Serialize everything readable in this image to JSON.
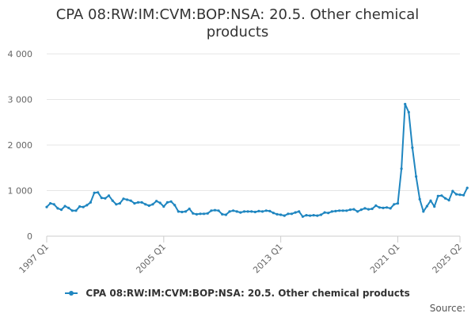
{
  "chart_data": {
    "type": "line",
    "title": "CPA 08:RW:IM:CVM:BOP:NSA: 20.5. Other chemical products",
    "xlabel": "",
    "ylabel": "",
    "ylim": [
      0,
      4000
    ],
    "yticks": [
      {
        "value": 0,
        "label": "0"
      },
      {
        "value": 1000,
        "label": "1 000"
      },
      {
        "value": 2000,
        "label": "2 000"
      },
      {
        "value": 3000,
        "label": "3 000"
      },
      {
        "value": 4000,
        "label": "4 000"
      }
    ],
    "xticks": [
      {
        "value": "1997 Q1",
        "label": "1997 Q1"
      },
      {
        "value": "2005 Q1",
        "label": "2005 Q1"
      },
      {
        "value": "2013 Q1",
        "label": "2013 Q1"
      },
      {
        "value": "2021 Q1",
        "label": "2021 Q1"
      },
      {
        "value": "2025 Q2",
        "label": "2025 Q2"
      }
    ],
    "grid": true,
    "legend_position": "bottom",
    "x_start": "1997 Q1",
    "x_end": "2025 Q2",
    "series": [
      {
        "name": "CPA 08:RW:IM:CVM:BOP:NSA: 20.5. Other chemical products",
        "color": "#1f86c0",
        "values": [
          640,
          720,
          700,
          610,
          580,
          660,
          620,
          560,
          560,
          650,
          640,
          680,
          740,
          950,
          960,
          840,
          830,
          890,
          780,
          700,
          720,
          820,
          800,
          780,
          720,
          740,
          740,
          700,
          670,
          700,
          770,
          730,
          650,
          740,
          760,
          680,
          540,
          530,
          540,
          600,
          500,
          480,
          490,
          490,
          500,
          560,
          570,
          560,
          480,
          470,
          540,
          560,
          540,
          520,
          540,
          540,
          540,
          530,
          550,
          540,
          560,
          550,
          510,
          480,
          470,
          450,
          490,
          490,
          520,
          540,
          430,
          460,
          450,
          460,
          450,
          470,
          520,
          510,
          540,
          550,
          560,
          560,
          560,
          580,
          590,
          540,
          580,
          610,
          590,
          600,
          670,
          630,
          620,
          630,
          610,
          700,
          720,
          1480,
          2900,
          2720,
          1940,
          1310,
          810,
          540,
          660,
          780,
          650,
          880,
          890,
          830,
          790,
          990,
          920,
          910,
          900,
          1060
        ]
      }
    ]
  },
  "source_label": "Source:"
}
